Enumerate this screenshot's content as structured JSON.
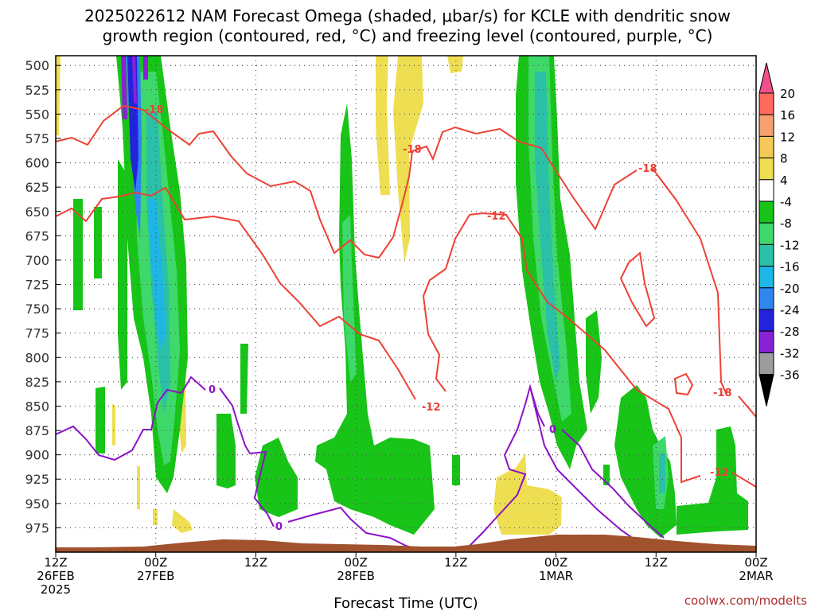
{
  "title_line1": "2025022612 NAM Forecast Omega (shaded, μbar/s) for KCLE with dendritic snow",
  "title_line2": "growth region (contoured, red, °C) and freezing level (contoured, purple, °C)",
  "credit": "coolwx.com/modelts",
  "chart_data": {
    "type": "contour",
    "title": "2025022612 NAM Forecast Omega (shaded, μbar/s) for KCLE with dendritic snow growth region (contoured, red, °C) and freezing level (contoured, purple, °C)",
    "xlabel": "Forecast Time (UTC)",
    "ylabel": "",
    "x_range": [
      0,
      84
    ],
    "y_range": [
      1000,
      490
    ],
    "y_ticks": [
      500,
      525,
      550,
      575,
      600,
      625,
      650,
      675,
      700,
      725,
      750,
      775,
      800,
      825,
      850,
      875,
      900,
      925,
      950,
      975
    ],
    "x_ticks": [
      {
        "hour": 0,
        "lines": [
          "12Z",
          "26FEB",
          "2025"
        ]
      },
      {
        "hour": 12,
        "lines": [
          "00Z",
          "27FEB"
        ]
      },
      {
        "hour": 24,
        "lines": [
          "12Z"
        ]
      },
      {
        "hour": 36,
        "lines": [
          "00Z",
          "28FEB"
        ]
      },
      {
        "hour": 48,
        "lines": [
          "12Z"
        ]
      },
      {
        "hour": 60,
        "lines": [
          "00Z",
          "1MAR"
        ]
      },
      {
        "hour": 72,
        "lines": [
          "12Z"
        ]
      },
      {
        "hour": 84,
        "lines": [
          "00Z",
          "2MAR"
        ]
      }
    ],
    "colorbar": {
      "labels": [
        "20",
        "16",
        "12",
        "8",
        "4",
        "-4",
        "-8",
        "-12",
        "-16",
        "-20",
        "-24",
        "-28",
        "-32",
        "-36"
      ],
      "colors": [
        "#f0508c",
        "#ff6a5c",
        "#f5a06e",
        "#f4c95a",
        "#eede52",
        "#ffffff",
        "#17c417",
        "#3fd86a",
        "#2bc0a8",
        "#1eb6e6",
        "#2f86ef",
        "#2323dc",
        "#8a21d6",
        "#9c9c9c",
        "#000000"
      ]
    },
    "series": [
      {
        "name": "red",
        "color": "#ee4036"
      },
      {
        "name": "purple",
        "color": "#8c12c6"
      }
    ],
    "contour_labels": [
      "-18",
      "-18",
      "-18",
      "-18",
      "-12",
      "-12",
      "-12",
      "0",
      "0",
      "0"
    ],
    "grid": true
  }
}
